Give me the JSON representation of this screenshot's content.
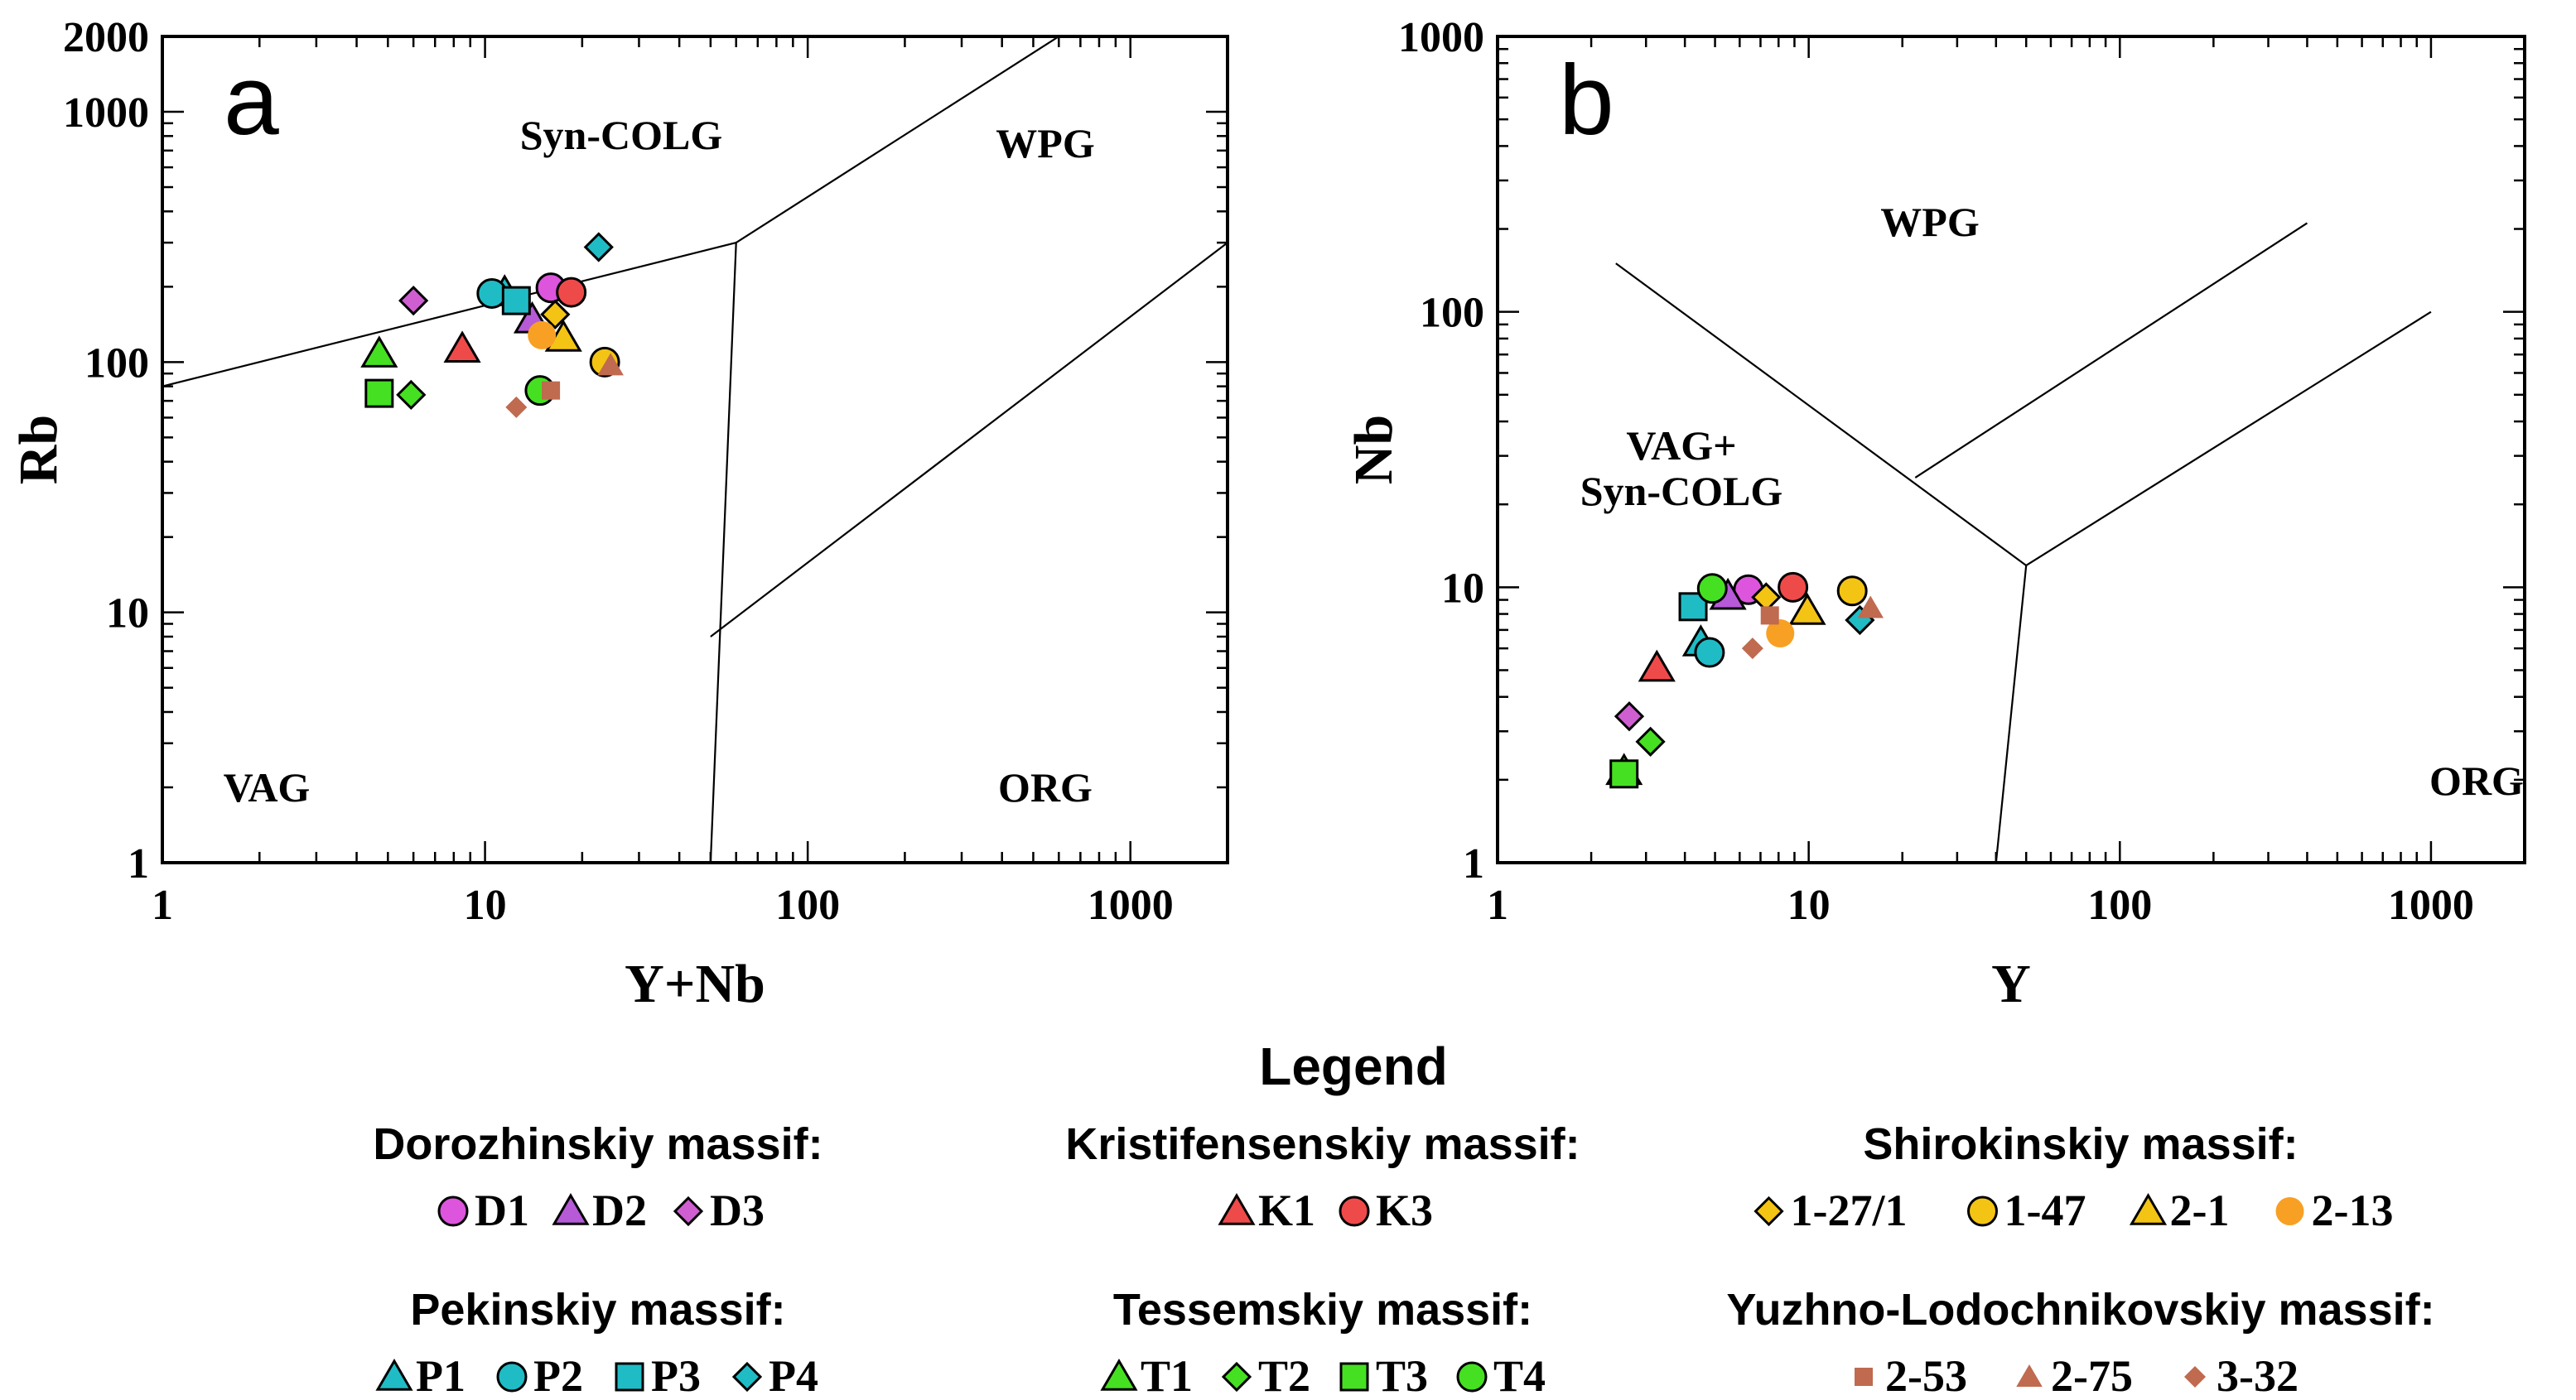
{
  "chart_data": [
    {
      "type": "scatter",
      "panel_label": "a",
      "xlabel": "Y+Nb",
      "ylabel": "Rb",
      "xscale": "log",
      "yscale": "log",
      "xlim": [
        1,
        2000
      ],
      "ylim": [
        1,
        2000
      ],
      "x_ticks": [
        1,
        10,
        100,
        1000
      ],
      "y_ticks": [
        1,
        10,
        100,
        1000,
        2000
      ],
      "fields": [
        "Syn-COLG",
        "WPG",
        "VAG",
        "ORG"
      ],
      "boundaries": [
        [
          [
            1,
            80
          ],
          [
            60,
            300
          ]
        ],
        [
          [
            60,
            300
          ],
          [
            600,
            2000
          ]
        ],
        [
          [
            60,
            300
          ],
          [
            50,
            1
          ]
        ],
        [
          [
            50,
            8
          ],
          [
            2000,
            300
          ]
        ]
      ],
      "series": [
        {
          "name": "D1",
          "symbol": "circle",
          "color": "#dc55dc",
          "points": [
            [
              16,
              198
            ]
          ]
        },
        {
          "name": "D2",
          "symbol": "triangle",
          "color": "#b65ad8",
          "points": [
            [
              14,
              148
            ]
          ]
        },
        {
          "name": "D3",
          "symbol": "diamond",
          "color": "#cf5fd0",
          "points": [
            [
              6,
              176
            ]
          ]
        },
        {
          "name": "K1",
          "symbol": "triangle",
          "color": "#ef4a4a",
          "points": [
            [
              8.5,
              113
            ]
          ]
        },
        {
          "name": "K3",
          "symbol": "circle",
          "color": "#ef4a4a",
          "points": [
            [
              18.5,
              190
            ]
          ]
        },
        {
          "name": "1-27/1",
          "symbol": "diamond",
          "color": "#f4c415",
          "points": [
            [
              16.5,
              155
            ]
          ]
        },
        {
          "name": "1-47",
          "symbol": "circle",
          "color": "#f4c415",
          "points": [
            [
              23.5,
              100
            ]
          ]
        },
        {
          "name": "2-1",
          "symbol": "triangle",
          "color": "#f4c415",
          "points": [
            [
              17.5,
              125
            ]
          ]
        },
        {
          "name": "2-13",
          "symbol": "dot",
          "color": "#f7a024",
          "points": [
            [
              15,
              128
            ]
          ]
        },
        {
          "name": "P1",
          "symbol": "triangle",
          "color": "#1fbcc6",
          "points": [
            [
              11.5,
              190
            ]
          ]
        },
        {
          "name": "P2",
          "symbol": "circle",
          "color": "#1fbcc6",
          "points": [
            [
              10.5,
              188
            ]
          ]
        },
        {
          "name": "P3",
          "symbol": "square",
          "color": "#1fbcc6",
          "points": [
            [
              12.5,
              176
            ]
          ]
        },
        {
          "name": "P4",
          "symbol": "diamond",
          "color": "#1fbcc6",
          "points": [
            [
              22.5,
              288
            ]
          ]
        },
        {
          "name": "T1",
          "symbol": "triangle",
          "color": "#46e022",
          "points": [
            [
              4.7,
              108
            ]
          ]
        },
        {
          "name": "T2",
          "symbol": "diamond",
          "color": "#46e022",
          "points": [
            [
              5.9,
              74
            ]
          ]
        },
        {
          "name": "T3",
          "symbol": "square",
          "color": "#46e022",
          "points": [
            [
              4.7,
              75
            ]
          ]
        },
        {
          "name": "T4",
          "symbol": "circle",
          "color": "#46e022",
          "points": [
            [
              14.8,
              77
            ]
          ]
        },
        {
          "name": "2-53",
          "symbol": "smallsquare",
          "color": "#c06a4f",
          "points": [
            [
              16,
              77
            ]
          ]
        },
        {
          "name": "2-75",
          "symbol": "smalltriangle",
          "color": "#c06a4f",
          "points": [
            [
              24.5,
              97
            ]
          ]
        },
        {
          "name": "3-32",
          "symbol": "smalldiamond",
          "color": "#c06a4f",
          "points": [
            [
              12.5,
              66
            ]
          ]
        }
      ]
    },
    {
      "type": "scatter",
      "panel_label": "b",
      "xlabel": "Y",
      "ylabel": "Nb",
      "xscale": "log",
      "yscale": "log",
      "xlim": [
        1,
        2000
      ],
      "ylim": [
        1,
        1000
      ],
      "x_ticks": [
        1,
        10,
        100,
        1000
      ],
      "y_ticks": [
        1,
        10,
        100,
        1000
      ],
      "fields": [
        "WPG",
        "VAG+",
        "Syn-COLG",
        "ORG"
      ],
      "boundaries": [
        [
          [
            2.4,
            150
          ],
          [
            50,
            12
          ]
        ],
        [
          [
            50,
            12
          ],
          [
            40,
            1
          ]
        ],
        [
          [
            50,
            12
          ],
          [
            1000,
            100
          ]
        ],
        [
          [
            22,
            25
          ],
          [
            400,
            210
          ]
        ]
      ],
      "series": [
        {
          "name": "D1",
          "symbol": "circle",
          "color": "#dc55dc",
          "points": [
            [
              6.4,
              9.8
            ]
          ]
        },
        {
          "name": "D2",
          "symbol": "triangle",
          "color": "#b65ad8",
          "points": [
            [
              5.5,
              9.3
            ]
          ]
        },
        {
          "name": "D3",
          "symbol": "diamond",
          "color": "#cf5fd0",
          "points": [
            [
              2.65,
              3.4
            ]
          ]
        },
        {
          "name": "K1",
          "symbol": "triangle",
          "color": "#ef4a4a",
          "points": [
            [
              3.25,
              5.1
            ]
          ]
        },
        {
          "name": "K3",
          "symbol": "circle",
          "color": "#ef4a4a",
          "points": [
            [
              8.9,
              10
            ]
          ]
        },
        {
          "name": "1-27/1",
          "symbol": "diamond",
          "color": "#f4c415",
          "points": [
            [
              7.3,
              9.2
            ]
          ]
        },
        {
          "name": "1-47",
          "symbol": "circle",
          "color": "#f4c415",
          "points": [
            [
              13.8,
              9.7
            ]
          ]
        },
        {
          "name": "2-1",
          "symbol": "triangle",
          "color": "#f4c415",
          "points": [
            [
              9.9,
              8.2
            ]
          ]
        },
        {
          "name": "2-13",
          "symbol": "dot",
          "color": "#f7a024",
          "points": [
            [
              8.1,
              6.8
            ]
          ]
        },
        {
          "name": "P1",
          "symbol": "triangle",
          "color": "#1fbcc6",
          "points": [
            [
              4.5,
              6.3
            ]
          ]
        },
        {
          "name": "P2",
          "symbol": "circle",
          "color": "#1fbcc6",
          "points": [
            [
              4.8,
              5.8
            ]
          ]
        },
        {
          "name": "P3",
          "symbol": "square",
          "color": "#1fbcc6",
          "points": [
            [
              4.25,
              8.5
            ]
          ]
        },
        {
          "name": "P4",
          "symbol": "diamond",
          "color": "#1fbcc6",
          "points": [
            [
              14.6,
              7.6
            ]
          ]
        },
        {
          "name": "T1",
          "symbol": "triangle",
          "color": "#46e022",
          "points": [
            [
              2.55,
              2.15
            ]
          ]
        },
        {
          "name": "T2",
          "symbol": "diamond",
          "color": "#46e022",
          "points": [
            [
              3.1,
              2.75
            ]
          ]
        },
        {
          "name": "T3",
          "symbol": "square",
          "color": "#46e022",
          "points": [
            [
              2.55,
              2.1
            ]
          ]
        },
        {
          "name": "T4",
          "symbol": "circle",
          "color": "#46e022",
          "points": [
            [
              4.9,
              9.9
            ]
          ]
        },
        {
          "name": "2-53",
          "symbol": "smallsquare",
          "color": "#c06a4f",
          "points": [
            [
              7.5,
              7.9
            ]
          ]
        },
        {
          "name": "2-75",
          "symbol": "smalltriangle",
          "color": "#c06a4f",
          "points": [
            [
              15.8,
              8.4
            ]
          ]
        },
        {
          "name": "3-32",
          "symbol": "smalldiamond",
          "color": "#c06a4f",
          "points": [
            [
              6.6,
              6
            ]
          ]
        }
      ]
    }
  ],
  "legend": {
    "title": "Legend",
    "groups": [
      {
        "title": "Dorozhinskiy massif:",
        "items": [
          "D1",
          "D2",
          "D3"
        ]
      },
      {
        "title": "Kristifensenskiy massif:",
        "items": [
          "K1",
          "K3"
        ]
      },
      {
        "title": "Shirokinskiy massif:",
        "items": [
          "1-27/1",
          "1-47",
          "2-1",
          "2-13"
        ]
      },
      {
        "title": "Pekinskiy massif:",
        "items": [
          "P1",
          "P2",
          "P3",
          "P4"
        ]
      },
      {
        "title": "Tessemskiy massif:",
        "items": [
          "T1",
          "T2",
          "T3",
          "T4"
        ]
      },
      {
        "title": "Yuzhno-Lodochnikovskiy massif:",
        "items": [
          "2-53",
          "2-75",
          "3-32"
        ]
      }
    ]
  }
}
